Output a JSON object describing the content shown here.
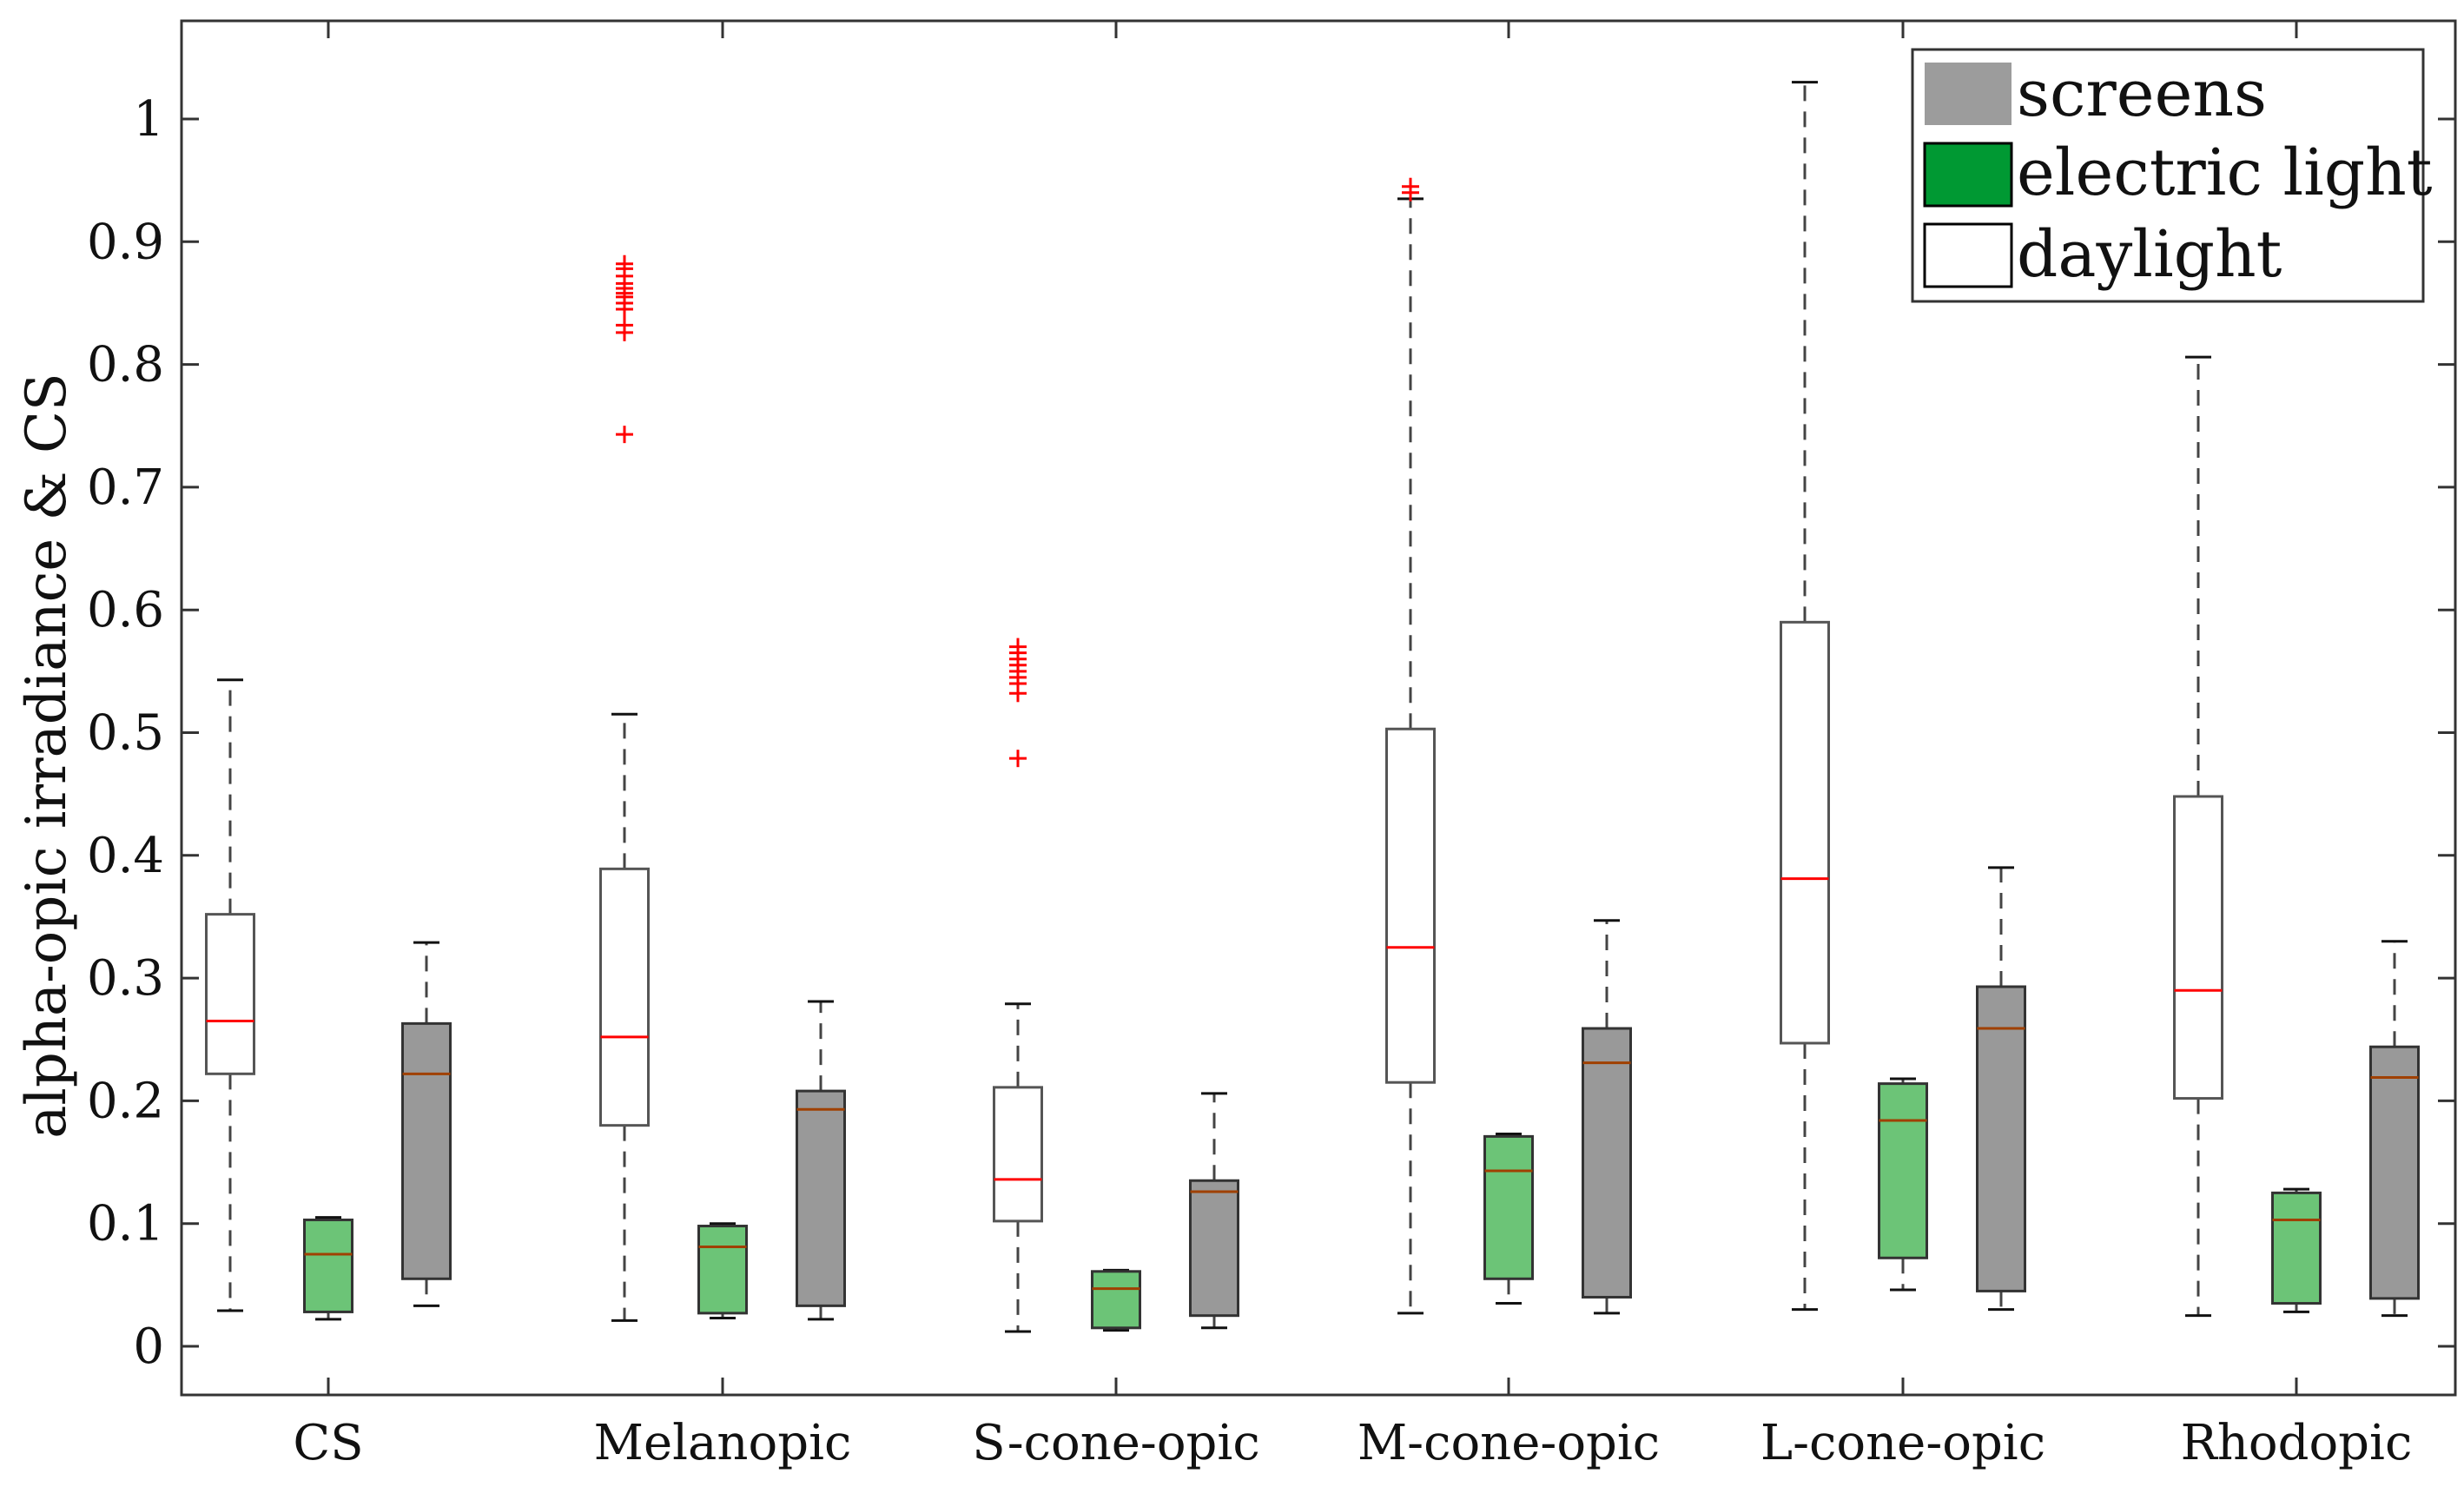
{
  "chart_data": {
    "type": "boxplot",
    "title": "",
    "xlabel": "",
    "ylabel": "alpha-opic irradiance & CS",
    "ylim": [
      -0.04,
      1.08
    ],
    "yticks": [
      0,
      0.1,
      0.2,
      0.3,
      0.4,
      0.5,
      0.6,
      0.7,
      0.8,
      0.9,
      1
    ],
    "ytick_labels": [
      "0",
      "0.1",
      "0.2",
      "0.3",
      "0.4",
      "0.5",
      "0.6",
      "0.7",
      "0.8",
      "0.9",
      "1"
    ],
    "categories": [
      "CS",
      "Melanopic",
      "S-cone-opic",
      "M-cone-opic",
      "L-cone-opic",
      "Rhodopic"
    ],
    "legend": {
      "position": "top-right",
      "entries": [
        {
          "label": "screens",
          "series": "screens"
        },
        {
          "label": "electric light",
          "series": "electric_light"
        },
        {
          "label": "daylight",
          "series": "daylight"
        }
      ]
    },
    "colors": {
      "daylight": "#ffffff",
      "electric_light": "#6cc477",
      "screens": "#999999",
      "legend_screens": "#9c9c9c",
      "legend_electric": "#009933",
      "median": "#ff0000",
      "median_dark": "#a04000",
      "outlier": "#ff0000",
      "whisker": "#444444"
    },
    "series": [
      {
        "name": "daylight",
        "boxes": [
          {
            "category": "CS",
            "whisker_low": 0.029,
            "q1": 0.222,
            "median": 0.265,
            "q3": 0.352,
            "whisker_high": 0.543,
            "outliers": []
          },
          {
            "category": "Melanopic",
            "whisker_low": 0.021,
            "q1": 0.18,
            "median": 0.252,
            "q3": 0.389,
            "whisker_high": 0.515,
            "outliers": [
              0.743,
              0.826,
              0.832,
              0.845,
              0.85,
              0.855,
              0.858,
              0.862,
              0.866,
              0.872,
              0.878,
              0.882
            ]
          },
          {
            "category": "S-cone-opic",
            "whisker_low": 0.012,
            "q1": 0.102,
            "median": 0.136,
            "q3": 0.211,
            "whisker_high": 0.279,
            "outliers": [
              0.479,
              0.532,
              0.54,
              0.545,
              0.55,
              0.555,
              0.56,
              0.565,
              0.57
            ]
          },
          {
            "category": "M-cone-opic",
            "whisker_low": 0.027,
            "q1": 0.215,
            "median": 0.325,
            "q3": 0.503,
            "whisker_high": 0.935,
            "outliers": [
              0.94,
              0.945
            ]
          },
          {
            "category": "L-cone-opic",
            "whisker_low": 0.03,
            "q1": 0.247,
            "median": 0.381,
            "q3": 0.59,
            "whisker_high": 1.03,
            "outliers": []
          },
          {
            "category": "Rhodopic",
            "whisker_low": 0.025,
            "q1": 0.202,
            "median": 0.29,
            "q3": 0.448,
            "whisker_high": 0.806,
            "outliers": []
          }
        ]
      },
      {
        "name": "electric_light",
        "boxes": [
          {
            "category": "CS",
            "whisker_low": 0.022,
            "q1": 0.028,
            "median": 0.075,
            "q3": 0.103,
            "whisker_high": 0.105,
            "outliers": []
          },
          {
            "category": "Melanopic",
            "whisker_low": 0.023,
            "q1": 0.027,
            "median": 0.081,
            "q3": 0.098,
            "whisker_high": 0.1,
            "outliers": []
          },
          {
            "category": "S-cone-opic",
            "whisker_low": 0.013,
            "q1": 0.015,
            "median": 0.047,
            "q3": 0.061,
            "whisker_high": 0.062,
            "outliers": []
          },
          {
            "category": "M-cone-opic",
            "whisker_low": 0.035,
            "q1": 0.055,
            "median": 0.143,
            "q3": 0.171,
            "whisker_high": 0.173,
            "outliers": []
          },
          {
            "category": "L-cone-opic",
            "whisker_low": 0.046,
            "q1": 0.072,
            "median": 0.184,
            "q3": 0.214,
            "whisker_high": 0.218,
            "outliers": []
          },
          {
            "category": "Rhodopic",
            "whisker_low": 0.028,
            "q1": 0.035,
            "median": 0.103,
            "q3": 0.125,
            "whisker_high": 0.128,
            "outliers": []
          }
        ]
      },
      {
        "name": "screens",
        "boxes": [
          {
            "category": "CS",
            "whisker_low": 0.033,
            "q1": 0.055,
            "median": 0.222,
            "q3": 0.263,
            "whisker_high": 0.329,
            "outliers": []
          },
          {
            "category": "Melanopic",
            "whisker_low": 0.022,
            "q1": 0.033,
            "median": 0.193,
            "q3": 0.208,
            "whisker_high": 0.281,
            "outliers": []
          },
          {
            "category": "S-cone-opic",
            "whisker_low": 0.015,
            "q1": 0.025,
            "median": 0.126,
            "q3": 0.135,
            "whisker_high": 0.206,
            "outliers": []
          },
          {
            "category": "M-cone-opic",
            "whisker_low": 0.027,
            "q1": 0.04,
            "median": 0.231,
            "q3": 0.259,
            "whisker_high": 0.347,
            "outliers": []
          },
          {
            "category": "L-cone-opic",
            "whisker_low": 0.03,
            "q1": 0.045,
            "median": 0.259,
            "q3": 0.293,
            "whisker_high": 0.39,
            "outliers": []
          },
          {
            "category": "Rhodopic",
            "whisker_low": 0.025,
            "q1": 0.039,
            "median": 0.219,
            "q3": 0.244,
            "whisker_high": 0.33,
            "outliers": []
          }
        ]
      }
    ]
  }
}
